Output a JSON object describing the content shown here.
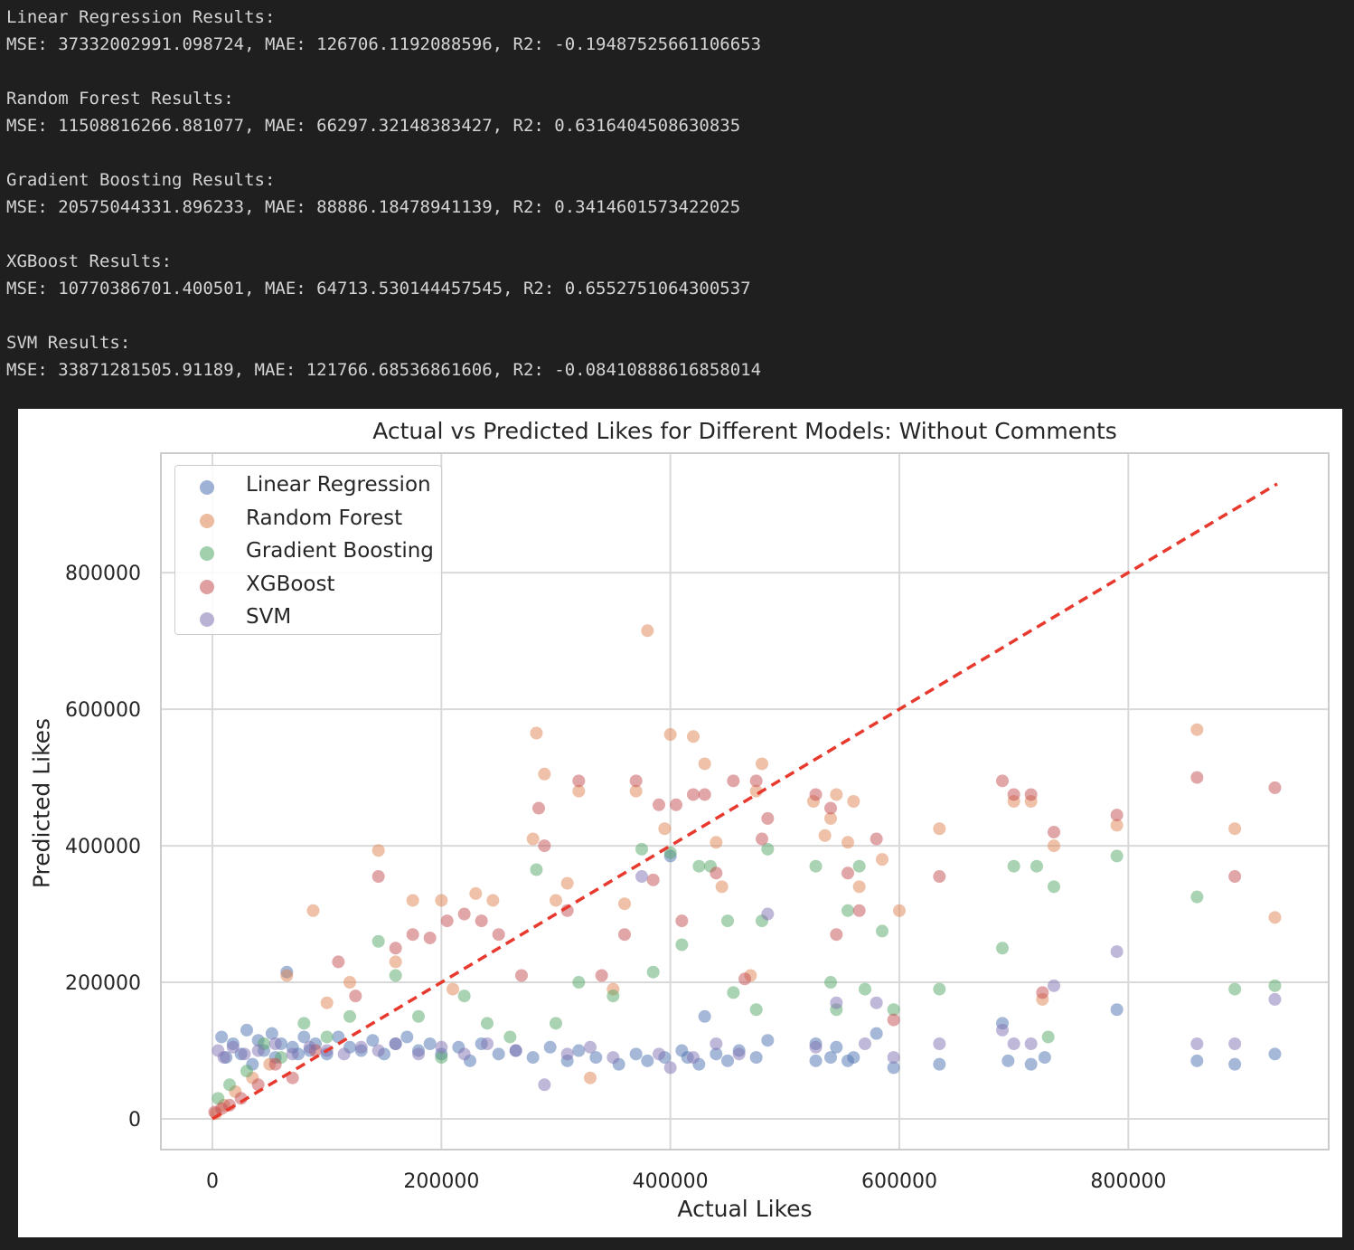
{
  "console": {
    "lines": [
      "Linear Regression Results:",
      "MSE: 37332002991.098724, MAE: 126706.1192088596, R2: -0.19487525661106653",
      "",
      "Random Forest Results:",
      "MSE: 11508816266.881077, MAE: 66297.32148383427, R2: 0.6316404508630835",
      "",
      "Gradient Boosting Results:",
      "MSE: 20575044331.896233, MAE: 88886.18478941139, R2: 0.3414601573422025",
      "",
      "XGBoost Results:",
      "MSE: 10770386701.400501, MAE: 64713.530144457545, R2: 0.6552751064300537",
      "",
      "SVM Results:",
      "MSE: 33871281505.91189, MAE: 121766.68536861606, R2: -0.08410888616858014"
    ]
  },
  "chart_data": {
    "type": "scatter",
    "title": "Actual vs Predicted Likes for Different Models: Without Comments",
    "xlabel": "Actual Likes",
    "ylabel": "Predicted Likes",
    "xlim": [
      -45000,
      975000
    ],
    "ylim": [
      -45000,
      975000
    ],
    "x_ticks": [
      0,
      200000,
      400000,
      600000,
      800000
    ],
    "y_ticks": [
      0,
      200000,
      400000,
      600000,
      800000
    ],
    "x_tick_labels": [
      "0",
      "200000",
      "400000",
      "600000",
      "800000"
    ],
    "y_tick_labels": [
      "0",
      "200000",
      "400000",
      "600000",
      "800000"
    ],
    "grid": true,
    "legend_position": "top-left",
    "reference_line": {
      "style": "dashed",
      "color": "#e8392e",
      "from": [
        0,
        0
      ],
      "to": [
        930000,
        930000
      ]
    },
    "series": [
      {
        "name": "Linear Regression",
        "color": "#4c72b0",
        "points": [
          [
            8000,
            120000
          ],
          [
            12000,
            90000
          ],
          [
            18000,
            110000
          ],
          [
            25000,
            95000
          ],
          [
            30000,
            130000
          ],
          [
            35000,
            80000
          ],
          [
            40000,
            115000
          ],
          [
            45000,
            100000
          ],
          [
            52000,
            125000
          ],
          [
            55000,
            90000
          ],
          [
            60000,
            110000
          ],
          [
            65000,
            215000
          ],
          [
            70000,
            105000
          ],
          [
            75000,
            95000
          ],
          [
            80000,
            120000
          ],
          [
            85000,
            100000
          ],
          [
            90000,
            110000
          ],
          [
            100000,
            95000
          ],
          [
            110000,
            120000
          ],
          [
            120000,
            105000
          ],
          [
            130000,
            100000
          ],
          [
            140000,
            115000
          ],
          [
            150000,
            95000
          ],
          [
            160000,
            110000
          ],
          [
            170000,
            120000
          ],
          [
            180000,
            100000
          ],
          [
            190000,
            110000
          ],
          [
            200000,
            95000
          ],
          [
            215000,
            105000
          ],
          [
            225000,
            85000
          ],
          [
            235000,
            110000
          ],
          [
            250000,
            95000
          ],
          [
            265000,
            100000
          ],
          [
            280000,
            90000
          ],
          [
            295000,
            105000
          ],
          [
            310000,
            85000
          ],
          [
            320000,
            100000
          ],
          [
            335000,
            90000
          ],
          [
            355000,
            80000
          ],
          [
            370000,
            95000
          ],
          [
            380000,
            85000
          ],
          [
            395000,
            90000
          ],
          [
            400000,
            385000
          ],
          [
            410000,
            100000
          ],
          [
            415000,
            90000
          ],
          [
            425000,
            80000
          ],
          [
            430000,
            150000
          ],
          [
            440000,
            95000
          ],
          [
            450000,
            85000
          ],
          [
            460000,
            100000
          ],
          [
            475000,
            90000
          ],
          [
            485000,
            115000
          ],
          [
            527000,
            85000
          ],
          [
            527000,
            110000
          ],
          [
            540000,
            90000
          ],
          [
            545000,
            105000
          ],
          [
            555000,
            85000
          ],
          [
            560000,
            90000
          ],
          [
            580000,
            125000
          ],
          [
            595000,
            75000
          ],
          [
            635000,
            80000
          ],
          [
            690000,
            140000
          ],
          [
            695000,
            85000
          ],
          [
            715000,
            80000
          ],
          [
            727000,
            90000
          ],
          [
            790000,
            160000
          ],
          [
            860000,
            85000
          ],
          [
            893000,
            80000
          ],
          [
            928000,
            95000
          ]
        ]
      },
      {
        "name": "Random Forest",
        "color": "#dd8452",
        "points": [
          [
            3000,
            8000
          ],
          [
            10000,
            20000
          ],
          [
            20000,
            40000
          ],
          [
            35000,
            60000
          ],
          [
            50000,
            80000
          ],
          [
            65000,
            210000
          ],
          [
            88000,
            305000
          ],
          [
            100000,
            170000
          ],
          [
            120000,
            200000
          ],
          [
            145000,
            393000
          ],
          [
            160000,
            230000
          ],
          [
            175000,
            320000
          ],
          [
            200000,
            320000
          ],
          [
            210000,
            190000
          ],
          [
            230000,
            330000
          ],
          [
            245000,
            320000
          ],
          [
            280000,
            410000
          ],
          [
            283000,
            565000
          ],
          [
            290000,
            505000
          ],
          [
            300000,
            320000
          ],
          [
            310000,
            345000
          ],
          [
            320000,
            480000
          ],
          [
            330000,
            60000
          ],
          [
            350000,
            190000
          ],
          [
            360000,
            315000
          ],
          [
            370000,
            480000
          ],
          [
            380000,
            715000
          ],
          [
            395000,
            425000
          ],
          [
            400000,
            563000
          ],
          [
            420000,
            560000
          ],
          [
            430000,
            520000
          ],
          [
            440000,
            405000
          ],
          [
            445000,
            340000
          ],
          [
            470000,
            210000
          ],
          [
            475000,
            480000
          ],
          [
            480000,
            520000
          ],
          [
            525000,
            465000
          ],
          [
            535000,
            415000
          ],
          [
            540000,
            440000
          ],
          [
            545000,
            475000
          ],
          [
            555000,
            405000
          ],
          [
            560000,
            465000
          ],
          [
            565000,
            340000
          ],
          [
            585000,
            380000
          ],
          [
            600000,
            305000
          ],
          [
            635000,
            425000
          ],
          [
            700000,
            465000
          ],
          [
            715000,
            465000
          ],
          [
            725000,
            175000
          ],
          [
            735000,
            400000
          ],
          [
            790000,
            430000
          ],
          [
            860000,
            570000
          ],
          [
            893000,
            425000
          ],
          [
            928000,
            295000
          ]
        ]
      },
      {
        "name": "Gradient Boosting",
        "color": "#55a868",
        "points": [
          [
            5000,
            30000
          ],
          [
            15000,
            50000
          ],
          [
            30000,
            70000
          ],
          [
            45000,
            110000
          ],
          [
            60000,
            90000
          ],
          [
            80000,
            140000
          ],
          [
            100000,
            120000
          ],
          [
            120000,
            150000
          ],
          [
            145000,
            260000
          ],
          [
            160000,
            210000
          ],
          [
            180000,
            150000
          ],
          [
            200000,
            90000
          ],
          [
            220000,
            180000
          ],
          [
            240000,
            140000
          ],
          [
            260000,
            120000
          ],
          [
            283000,
            365000
          ],
          [
            300000,
            140000
          ],
          [
            320000,
            200000
          ],
          [
            350000,
            180000
          ],
          [
            375000,
            395000
          ],
          [
            385000,
            215000
          ],
          [
            400000,
            390000
          ],
          [
            410000,
            255000
          ],
          [
            425000,
            370000
          ],
          [
            435000,
            370000
          ],
          [
            450000,
            290000
          ],
          [
            455000,
            185000
          ],
          [
            475000,
            160000
          ],
          [
            480000,
            290000
          ],
          [
            485000,
            395000
          ],
          [
            527000,
            370000
          ],
          [
            540000,
            200000
          ],
          [
            545000,
            160000
          ],
          [
            555000,
            305000
          ],
          [
            565000,
            370000
          ],
          [
            570000,
            190000
          ],
          [
            585000,
            275000
          ],
          [
            595000,
            160000
          ],
          [
            635000,
            190000
          ],
          [
            690000,
            250000
          ],
          [
            700000,
            370000
          ],
          [
            720000,
            370000
          ],
          [
            730000,
            120000
          ],
          [
            735000,
            340000
          ],
          [
            790000,
            385000
          ],
          [
            860000,
            325000
          ],
          [
            893000,
            190000
          ],
          [
            928000,
            195000
          ]
        ]
      },
      {
        "name": "XGBoost",
        "color": "#c44e52",
        "points": [
          [
            2000,
            10000
          ],
          [
            8000,
            15000
          ],
          [
            15000,
            20000
          ],
          [
            25000,
            30000
          ],
          [
            40000,
            50000
          ],
          [
            55000,
            80000
          ],
          [
            70000,
            60000
          ],
          [
            90000,
            100000
          ],
          [
            110000,
            230000
          ],
          [
            125000,
            180000
          ],
          [
            145000,
            355000
          ],
          [
            160000,
            250000
          ],
          [
            175000,
            270000
          ],
          [
            190000,
            265000
          ],
          [
            205000,
            290000
          ],
          [
            220000,
            300000
          ],
          [
            235000,
            290000
          ],
          [
            250000,
            270000
          ],
          [
            270000,
            210000
          ],
          [
            285000,
            455000
          ],
          [
            290000,
            400000
          ],
          [
            310000,
            305000
          ],
          [
            320000,
            495000
          ],
          [
            340000,
            210000
          ],
          [
            360000,
            270000
          ],
          [
            370000,
            495000
          ],
          [
            385000,
            350000
          ],
          [
            390000,
            460000
          ],
          [
            405000,
            460000
          ],
          [
            410000,
            290000
          ],
          [
            420000,
            475000
          ],
          [
            430000,
            475000
          ],
          [
            440000,
            360000
          ],
          [
            455000,
            495000
          ],
          [
            465000,
            205000
          ],
          [
            475000,
            495000
          ],
          [
            480000,
            410000
          ],
          [
            485000,
            440000
          ],
          [
            527000,
            475000
          ],
          [
            540000,
            455000
          ],
          [
            545000,
            270000
          ],
          [
            555000,
            360000
          ],
          [
            565000,
            305000
          ],
          [
            580000,
            410000
          ],
          [
            595000,
            145000
          ],
          [
            635000,
            355000
          ],
          [
            690000,
            495000
          ],
          [
            700000,
            475000
          ],
          [
            715000,
            475000
          ],
          [
            725000,
            185000
          ],
          [
            735000,
            420000
          ],
          [
            790000,
            445000
          ],
          [
            860000,
            500000
          ],
          [
            893000,
            355000
          ],
          [
            928000,
            485000
          ]
        ]
      },
      {
        "name": "SVM",
        "color": "#8172b3",
        "points": [
          [
            5000,
            100000
          ],
          [
            10000,
            90000
          ],
          [
            18000,
            105000
          ],
          [
            28000,
            95000
          ],
          [
            40000,
            100000
          ],
          [
            55000,
            110000
          ],
          [
            70000,
            95000
          ],
          [
            85000,
            105000
          ],
          [
            100000,
            100000
          ],
          [
            115000,
            95000
          ],
          [
            130000,
            105000
          ],
          [
            145000,
            100000
          ],
          [
            160000,
            110000
          ],
          [
            180000,
            95000
          ],
          [
            200000,
            105000
          ],
          [
            220000,
            95000
          ],
          [
            240000,
            110000
          ],
          [
            265000,
            100000
          ],
          [
            290000,
            50000
          ],
          [
            310000,
            95000
          ],
          [
            330000,
            105000
          ],
          [
            350000,
            90000
          ],
          [
            375000,
            355000
          ],
          [
            390000,
            95000
          ],
          [
            400000,
            75000
          ],
          [
            420000,
            90000
          ],
          [
            440000,
            110000
          ],
          [
            460000,
            95000
          ],
          [
            485000,
            300000
          ],
          [
            527000,
            105000
          ],
          [
            545000,
            170000
          ],
          [
            570000,
            110000
          ],
          [
            580000,
            170000
          ],
          [
            595000,
            90000
          ],
          [
            635000,
            110000
          ],
          [
            690000,
            130000
          ],
          [
            700000,
            110000
          ],
          [
            715000,
            110000
          ],
          [
            735000,
            195000
          ],
          [
            790000,
            245000
          ],
          [
            860000,
            110000
          ],
          [
            893000,
            110000
          ],
          [
            928000,
            175000
          ]
        ]
      }
    ]
  }
}
